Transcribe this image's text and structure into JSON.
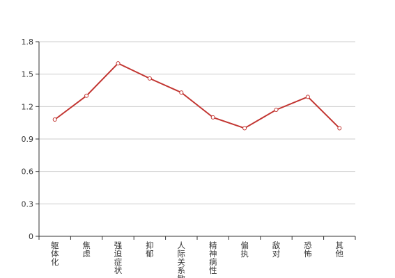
{
  "chart_data": {
    "type": "line",
    "categories": [
      "躯体化",
      "焦虑",
      "强迫症状",
      "抑郁",
      "人际关系敏感",
      "精神病性",
      "偏执",
      "敌对",
      "恐怖",
      "其他"
    ],
    "series": [
      {
        "values": [
          1.08,
          1.3,
          1.6,
          1.46,
          1.33,
          1.1,
          1.0,
          1.17,
          1.29,
          1.0
        ]
      }
    ],
    "yticks": [
      "0",
      "0.3",
      "0.6",
      "0.9",
      "1.2",
      "1.5",
      "1.8"
    ],
    "ylim": [
      0,
      1.8
    ],
    "grid": "horizontal",
    "legend": "none",
    "colors": {
      "line": "#c23531",
      "grid": "#cccccc",
      "axis": "#333333"
    }
  }
}
